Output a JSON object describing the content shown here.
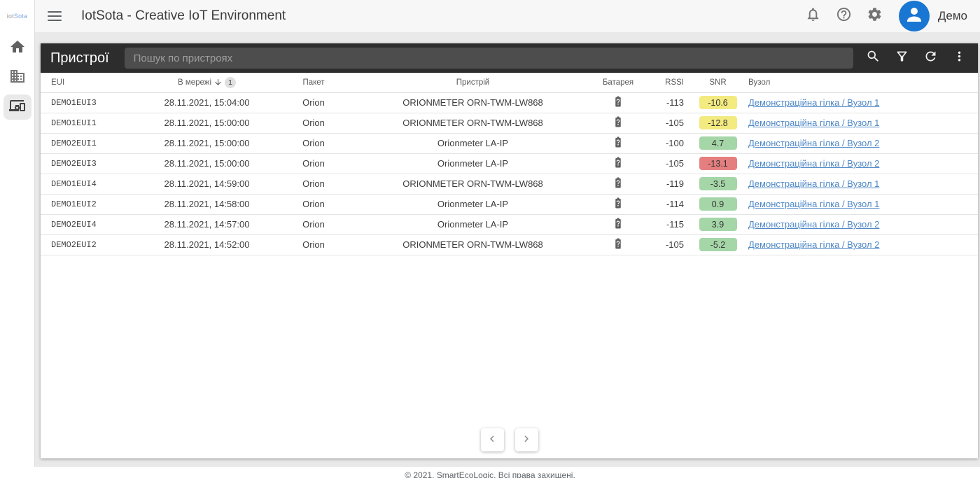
{
  "app": {
    "logo_prefix": "iot",
    "logo_suffix": "Sota",
    "title": "IotSota - Creative IoT Environment",
    "user_label": "Демо"
  },
  "sidebar": {
    "items": [
      {
        "id": "home",
        "icon": "home-icon",
        "active": false
      },
      {
        "id": "organizations",
        "icon": "building-icon",
        "active": false
      },
      {
        "id": "devices",
        "icon": "devices-icon",
        "active": true
      }
    ]
  },
  "toolbar": {
    "title": "Пристрої",
    "search_placeholder": "Пошук по пристроях",
    "icons": [
      "search",
      "filter",
      "refresh",
      "more"
    ]
  },
  "table": {
    "columns": [
      "EUI",
      "В мережі",
      "Пакет",
      "Пристрій",
      "Батарея",
      "RSSI",
      "SNR",
      "Вузол"
    ],
    "sort": {
      "column": "В мережі",
      "direction": "desc",
      "order": "1"
    },
    "battery_status": "unknown",
    "rows": [
      {
        "eui": "DEMO1EUI3",
        "last_seen": "28.11.2021, 15:04:00",
        "packet": "Orion",
        "device": "ORIONMETER ORN-TWM-LW868",
        "rssi": "-113",
        "snr": "-10.6",
        "snr_level": "warn",
        "node": "Демонстраційна гілка / Вузол 1"
      },
      {
        "eui": "DEMO1EUI1",
        "last_seen": "28.11.2021, 15:00:00",
        "packet": "Orion",
        "device": "ORIONMETER ORN-TWM-LW868",
        "rssi": "-105",
        "snr": "-12.8",
        "snr_level": "warn",
        "node": "Демонстраційна гілка / Вузол 1"
      },
      {
        "eui": "DEMO2EUI1",
        "last_seen": "28.11.2021, 15:00:00",
        "packet": "Orion",
        "device": "Orionmeter LA-IP",
        "rssi": "-100",
        "snr": "4.7",
        "snr_level": "good",
        "node": "Демонстраційна гілка / Вузол 2"
      },
      {
        "eui": "DEMO2EUI3",
        "last_seen": "28.11.2021, 15:00:00",
        "packet": "Orion",
        "device": "Orionmeter LA-IP",
        "rssi": "-105",
        "snr": "-13.1",
        "snr_level": "bad",
        "node": "Демонстраційна гілка / Вузол 2"
      },
      {
        "eui": "DEMO1EUI4",
        "last_seen": "28.11.2021, 14:59:00",
        "packet": "Orion",
        "device": "ORIONMETER ORN-TWM-LW868",
        "rssi": "-119",
        "snr": "-3.5",
        "snr_level": "good",
        "node": "Демонстраційна гілка / Вузол 1"
      },
      {
        "eui": "DEMO1EUI2",
        "last_seen": "28.11.2021, 14:58:00",
        "packet": "Orion",
        "device": "Orionmeter LA-IP",
        "rssi": "-114",
        "snr": "0.9",
        "snr_level": "good",
        "node": "Демонстраційна гілка / Вузол 1"
      },
      {
        "eui": "DEMO2EUI4",
        "last_seen": "28.11.2021, 14:57:00",
        "packet": "Orion",
        "device": "Orionmeter LA-IP",
        "rssi": "-115",
        "snr": "3.9",
        "snr_level": "good",
        "node": "Демонстраційна гілка / Вузол 2"
      },
      {
        "eui": "DEMO2EUI2",
        "last_seen": "28.11.2021, 14:52:00",
        "packet": "Orion",
        "device": "ORIONMETER ORN-TWM-LW868",
        "rssi": "-105",
        "snr": "-5.2",
        "snr_level": "good",
        "node": "Демонстраційна гілка / Вузол 2"
      }
    ]
  },
  "footer": {
    "copyright": "© 2021, SmartEcoLogic. Всі права захищені."
  },
  "colors": {
    "avatar_blue": "#1976d2",
    "link_blue": "#4e88c7",
    "snr_good": "#a5d6a7",
    "snr_warn": "#f3ea80",
    "snr_bad": "#e57f7f"
  }
}
